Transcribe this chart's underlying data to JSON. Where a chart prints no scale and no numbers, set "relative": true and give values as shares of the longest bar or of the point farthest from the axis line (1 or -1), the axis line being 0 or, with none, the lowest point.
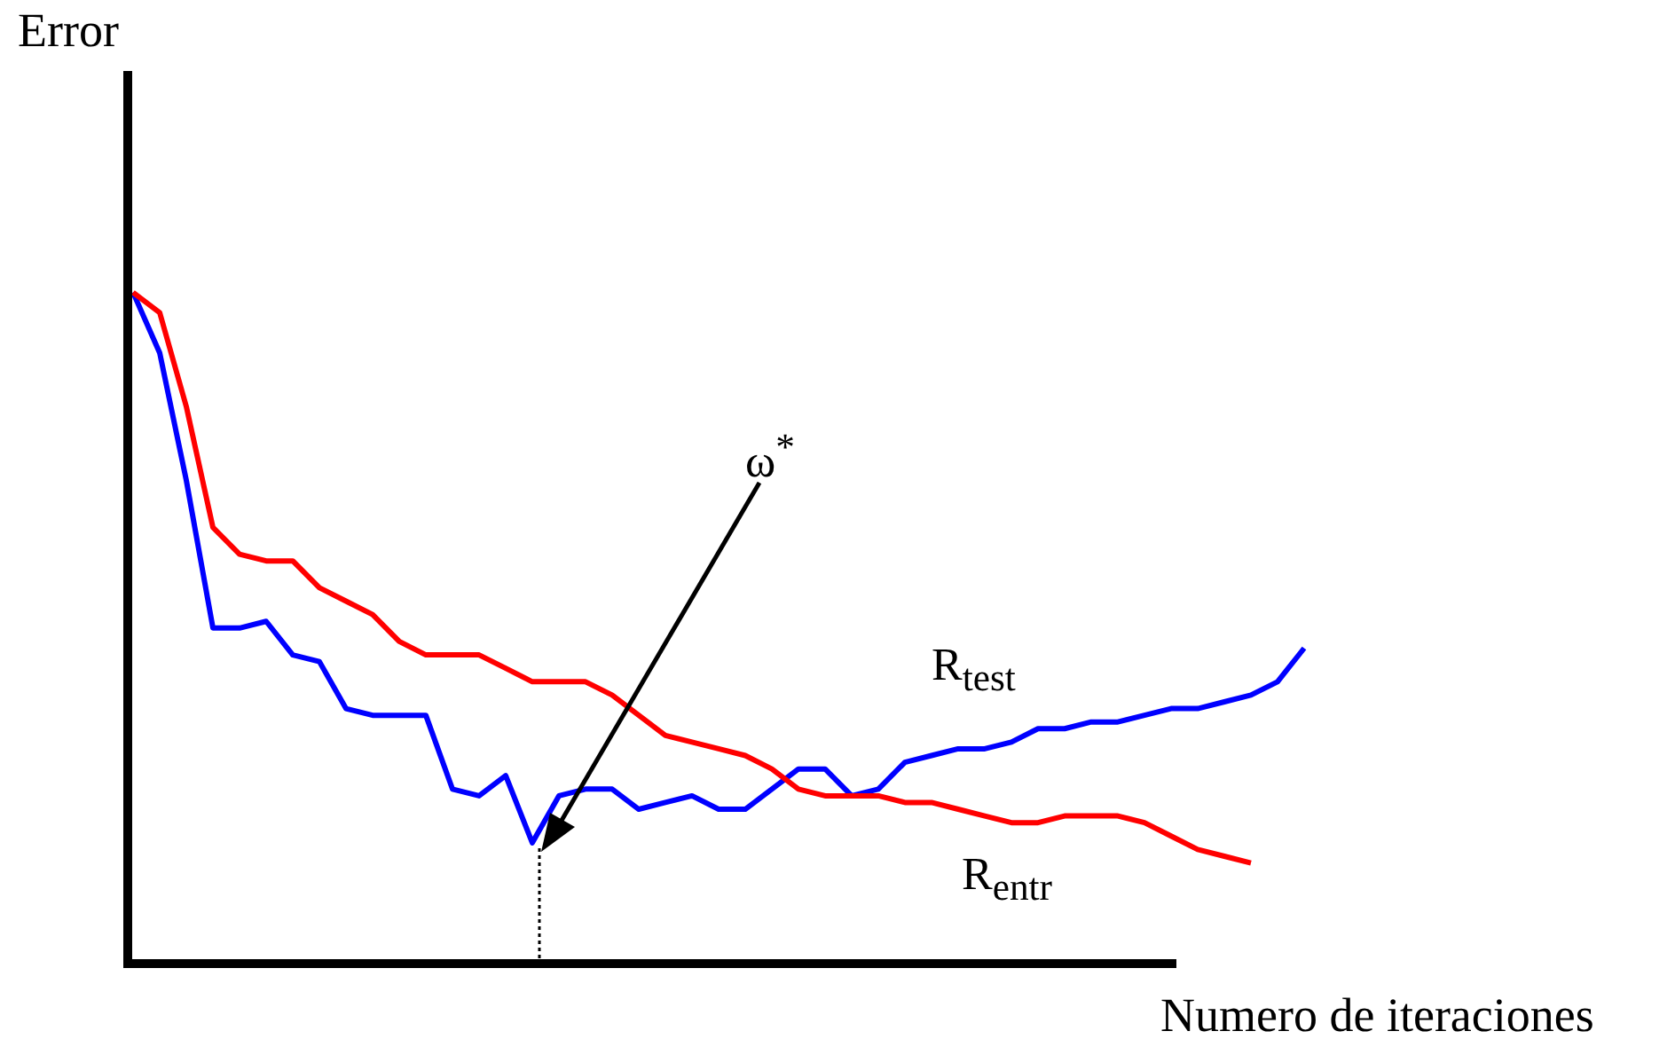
{
  "chart_data": {
    "type": "line",
    "relative": true,
    "xlabel": "Numero de iteraciones",
    "ylabel": "Error",
    "annotations": [
      "ω$^{*}$"
    ],
    "categories": [
      null,
      null,
      null,
      null,
      null,
      null,
      null,
      null,
      null,
      null,
      null,
      null,
      null,
      null,
      null,
      null,
      null,
      null,
      null,
      null,
      null,
      null,
      null,
      null,
      null,
      null,
      null,
      null,
      null,
      null,
      null,
      null,
      null,
      null,
      null,
      null,
      null,
      null,
      null,
      null,
      null,
      null,
      null,
      null,
      null
    ],
    "series": [
      {
        "name": "R$_{entr}$",
        "color": "#ff0000",
        "values": [
          1.0,
          0.97,
          0.83,
          0.65,
          0.61,
          0.6,
          0.6,
          0.56,
          0.54,
          0.52,
          0.48,
          0.46,
          0.46,
          0.46,
          0.44,
          0.42,
          0.42,
          0.42,
          0.4,
          0.37,
          0.34,
          0.33,
          0.32,
          0.31,
          0.29,
          0.26,
          0.25,
          0.25,
          0.25,
          0.24,
          0.24,
          0.23,
          0.22,
          0.21,
          0.21,
          0.22,
          0.22,
          0.22,
          0.21,
          0.19,
          0.17,
          0.16,
          0.15,
          null,
          null
        ]
      },
      {
        "name": "R$_{test}$",
        "color": "#0000ff",
        "values": [
          1.0,
          0.91,
          0.72,
          0.5,
          0.5,
          0.51,
          0.46,
          0.45,
          0.38,
          0.37,
          0.37,
          0.37,
          0.26,
          0.25,
          0.28,
          0.18,
          0.25,
          0.26,
          0.26,
          0.23,
          0.24,
          0.25,
          0.23,
          0.23,
          0.26,
          0.29,
          0.29,
          0.25,
          0.26,
          0.3,
          0.31,
          0.32,
          0.32,
          0.33,
          0.35,
          0.35,
          0.36,
          0.36,
          0.37,
          0.38,
          0.38,
          0.39,
          0.4,
          0.42,
          0.47
        ]
      }
    ]
  }
}
